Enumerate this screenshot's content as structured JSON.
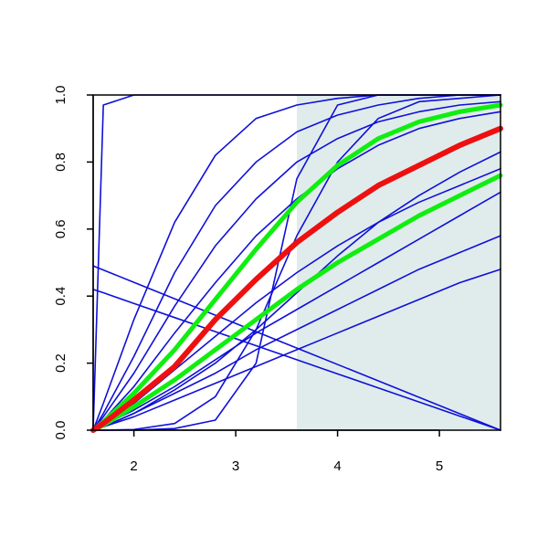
{
  "chart_data": {
    "type": "line",
    "x": [
      1.6,
      1.7,
      2.0,
      2.4,
      2.8,
      3.2,
      3.6,
      4.0,
      4.4,
      4.8,
      5.2,
      5.6
    ],
    "xlim": [
      1.6,
      5.6
    ],
    "ylim": [
      0,
      1
    ],
    "xticks": [
      2,
      3,
      4,
      5
    ],
    "yticks": [
      {
        "value": 0,
        "label": "0.0"
      },
      0.2,
      0.4,
      0.6,
      0.8,
      {
        "value": 1,
        "label": "1.0"
      }
    ],
    "shaded_region": [
      3.6,
      5.6
    ],
    "shade_color": "#e0ecec",
    "series": [
      {
        "color": "#1010d8",
        "linewidth": 1.6,
        "values": [
          0,
          0.97,
          1,
          1,
          1,
          1,
          1,
          1,
          1,
          1,
          1,
          1
        ]
      },
      {
        "color": "#1010d8",
        "linewidth": 1.6,
        "values": [
          0,
          0.08,
          0.33,
          0.62,
          0.82,
          0.93,
          0.97,
          0.99,
          1,
          1,
          1,
          1
        ]
      },
      {
        "color": "#1010d8",
        "linewidth": 1.6,
        "values": [
          0,
          0.05,
          0.22,
          0.47,
          0.67,
          0.8,
          0.89,
          0.94,
          0.97,
          0.99,
          1,
          1
        ]
      },
      {
        "color": "#1010d8",
        "linewidth": 1.6,
        "values": [
          0,
          0.04,
          0.17,
          0.37,
          0.55,
          0.69,
          0.8,
          0.87,
          0.92,
          0.95,
          0.97,
          0.98
        ]
      },
      {
        "color": "#1010d8",
        "linewidth": 1.6,
        "values": [
          0,
          0.03,
          0.13,
          0.29,
          0.44,
          0.58,
          0.69,
          0.78,
          0.85,
          0.9,
          0.93,
          0.95
        ]
      },
      {
        "color": "#1010d8",
        "linewidth": 1.6,
        "values": [
          0,
          0,
          0,
          0.005,
          0.03,
          0.2,
          0.75,
          0.97,
          1,
          1,
          1,
          1
        ]
      },
      {
        "color": "#1010d8",
        "linewidth": 1.6,
        "values": [
          0,
          0,
          0.002,
          0.02,
          0.1,
          0.3,
          0.58,
          0.8,
          0.93,
          0.98,
          0.99,
          1
        ]
      },
      {
        "color": "#1010d8",
        "linewidth": 1.6,
        "values": [
          0,
          0.01,
          0.05,
          0.12,
          0.2,
          0.3,
          0.41,
          0.52,
          0.62,
          0.7,
          0.77,
          0.83
        ]
      },
      {
        "color": "#1010d8",
        "linewidth": 1.6,
        "values": [
          0,
          0.02,
          0.08,
          0.18,
          0.28,
          0.38,
          0.47,
          0.55,
          0.62,
          0.68,
          0.73,
          0.78
        ]
      },
      {
        "color": "#1010d8",
        "linewidth": 1.6,
        "values": [
          0,
          0.015,
          0.06,
          0.13,
          0.21,
          0.29,
          0.36,
          0.43,
          0.5,
          0.57,
          0.64,
          0.71
        ]
      },
      {
        "color": "#1010d8",
        "linewidth": 1.6,
        "values": [
          0,
          0.01,
          0.05,
          0.11,
          0.17,
          0.24,
          0.3,
          0.36,
          0.42,
          0.48,
          0.53,
          0.58
        ]
      },
      {
        "color": "#1010d8",
        "linewidth": 1.6,
        "values": [
          0,
          0.01,
          0.04,
          0.09,
          0.14,
          0.19,
          0.24,
          0.29,
          0.34,
          0.39,
          0.44,
          0.48
        ]
      },
      {
        "color": "#1010d8",
        "linewidth": 1.6,
        "values": [
          0.49,
          0.478,
          0.441,
          0.392,
          0.343,
          0.294,
          0.245,
          0.196,
          0.147,
          0.098,
          0.049,
          0
        ]
      },
      {
        "color": "#1010d8",
        "linewidth": 1.6,
        "values": [
          0.42,
          0.41,
          0.378,
          0.336,
          0.294,
          0.252,
          0.21,
          0.168,
          0.126,
          0.084,
          0.042,
          0
        ]
      },
      {
        "color": "#10ee10",
        "linewidth": 5,
        "values": [
          0,
          0.025,
          0.11,
          0.24,
          0.39,
          0.54,
          0.68,
          0.79,
          0.87,
          0.92,
          0.95,
          0.97
        ]
      },
      {
        "color": "#10ee10",
        "linewidth": 5,
        "values": [
          0,
          0.015,
          0.07,
          0.15,
          0.24,
          0.33,
          0.42,
          0.5,
          0.57,
          0.64,
          0.7,
          0.76
        ]
      },
      {
        "color": "#ee1010",
        "linewidth": 6,
        "values": [
          0,
          0.02,
          0.09,
          0.19,
          0.33,
          0.45,
          0.56,
          0.65,
          0.73,
          0.79,
          0.85,
          0.9
        ]
      }
    ]
  }
}
